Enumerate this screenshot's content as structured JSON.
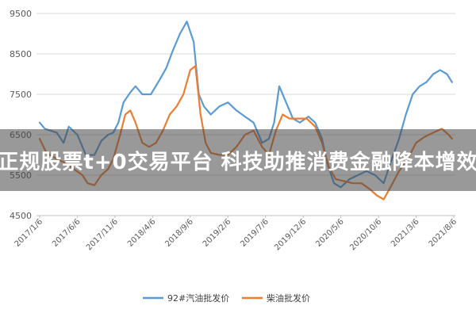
{
  "chart_data": {
    "type": "line",
    "y_ticks": [
      "9500",
      "8500",
      "7500",
      "6500",
      "5500",
      "4500"
    ],
    "ylim": [
      4500,
      9500
    ],
    "x_ticks": [
      "2017/1/6",
      "2017/6/6",
      "2017/11/6",
      "2018/4/6",
      "2018/9/6",
      "2019/2/6",
      "2019/7/6",
      "2019/12/6",
      "2020/5/6",
      "2020/10/6",
      "2021/3/6",
      "2021/8/6"
    ],
    "grid": true,
    "legend_position": "bottom",
    "series": [
      {
        "name": "92#汽油批发价",
        "color": "#5b9bd5",
        "points": [
          [
            0,
            6800
          ],
          [
            0.3,
            6650
          ],
          [
            1,
            6550
          ],
          [
            1.4,
            6300
          ],
          [
            1.7,
            6700
          ],
          [
            2.2,
            6500
          ],
          [
            2.7,
            6000
          ],
          [
            3.2,
            6000
          ],
          [
            3.6,
            6350
          ],
          [
            4,
            6500
          ],
          [
            4.3,
            6550
          ],
          [
            4.6,
            6800
          ],
          [
            4.9,
            7300
          ],
          [
            5.3,
            7550
          ],
          [
            5.6,
            7700
          ],
          [
            6,
            7500
          ],
          [
            6.5,
            7500
          ],
          [
            7,
            7850
          ],
          [
            7.4,
            8150
          ],
          [
            7.8,
            8600
          ],
          [
            8.2,
            9000
          ],
          [
            8.6,
            9300
          ],
          [
            9,
            8800
          ],
          [
            9.3,
            7500
          ],
          [
            9.6,
            7200
          ],
          [
            10,
            7000
          ],
          [
            10.5,
            7200
          ],
          [
            11,
            7300
          ],
          [
            11.5,
            7100
          ],
          [
            12,
            6950
          ],
          [
            12.5,
            6800
          ],
          [
            13,
            6300
          ],
          [
            13.4,
            6400
          ],
          [
            13.7,
            6800
          ],
          [
            14,
            7700
          ],
          [
            14.4,
            7300
          ],
          [
            14.8,
            6900
          ],
          [
            15.2,
            6800
          ],
          [
            15.7,
            6950
          ],
          [
            16.1,
            6800
          ],
          [
            16.5,
            6400
          ],
          [
            16.8,
            5800
          ],
          [
            17.2,
            5300
          ],
          [
            17.6,
            5200
          ],
          [
            18.1,
            5400
          ],
          [
            18.6,
            5500
          ],
          [
            19.1,
            5600
          ],
          [
            19.6,
            5500
          ],
          [
            20.1,
            5300
          ],
          [
            20.5,
            5800
          ],
          [
            21,
            6400
          ],
          [
            21.4,
            7000
          ],
          [
            21.8,
            7500
          ],
          [
            22.2,
            7700
          ],
          [
            22.6,
            7800
          ],
          [
            23,
            8000
          ],
          [
            23.4,
            8100
          ],
          [
            23.8,
            8000
          ],
          [
            24.1,
            7800
          ]
        ]
      },
      {
        "name": "柴油批发价",
        "color": "#ed7d31",
        "points": [
          [
            0,
            6400
          ],
          [
            0.4,
            6050
          ],
          [
            1,
            5900
          ],
          [
            1.5,
            5800
          ],
          [
            2,
            5650
          ],
          [
            2.5,
            5500
          ],
          [
            2.8,
            5300
          ],
          [
            3.2,
            5250
          ],
          [
            3.6,
            5500
          ],
          [
            4,
            5650
          ],
          [
            4.3,
            5900
          ],
          [
            4.7,
            6500
          ],
          [
            5,
            7000
          ],
          [
            5.3,
            7100
          ],
          [
            5.6,
            6800
          ],
          [
            6,
            6300
          ],
          [
            6.4,
            6200
          ],
          [
            6.8,
            6300
          ],
          [
            7.2,
            6600
          ],
          [
            7.6,
            7000
          ],
          [
            8,
            7200
          ],
          [
            8.4,
            7500
          ],
          [
            8.8,
            8100
          ],
          [
            9.1,
            8200
          ],
          [
            9.4,
            7000
          ],
          [
            9.7,
            6300
          ],
          [
            10,
            6050
          ],
          [
            10.5,
            6000
          ],
          [
            11,
            6000
          ],
          [
            11.5,
            6200
          ],
          [
            12,
            6500
          ],
          [
            12.5,
            6600
          ],
          [
            13,
            6200
          ],
          [
            13.4,
            6000
          ],
          [
            13.8,
            6600
          ],
          [
            14.2,
            7000
          ],
          [
            14.6,
            6900
          ],
          [
            15.1,
            6900
          ],
          [
            15.6,
            6900
          ],
          [
            16.1,
            6700
          ],
          [
            16.5,
            6300
          ],
          [
            16.9,
            5700
          ],
          [
            17.3,
            5400
          ],
          [
            17.8,
            5350
          ],
          [
            18.3,
            5300
          ],
          [
            18.8,
            5300
          ],
          [
            19.3,
            5150
          ],
          [
            19.7,
            5000
          ],
          [
            20.1,
            4900
          ],
          [
            20.5,
            5200
          ],
          [
            21,
            5600
          ],
          [
            21.5,
            5900
          ],
          [
            22,
            6300
          ],
          [
            22.5,
            6450
          ],
          [
            23,
            6550
          ],
          [
            23.5,
            6650
          ],
          [
            23.9,
            6500
          ],
          [
            24.1,
            6400
          ]
        ]
      }
    ]
  },
  "banner": {
    "text": "正规股票t+0交易平台 科技助推消费金融降本增效"
  }
}
